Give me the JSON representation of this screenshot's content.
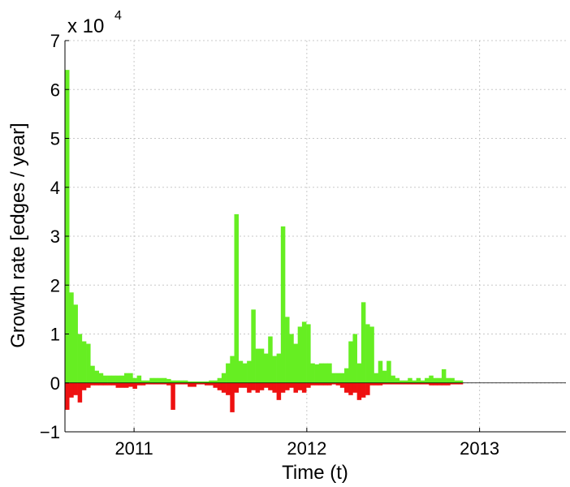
{
  "chart_data": {
    "type": "bar",
    "xlabel": "Time (t)",
    "ylabel": "Growth rate [edges / year]",
    "y_multiplier_label": "x 10",
    "y_multiplier_exponent": "4",
    "y_multiplier": 10000,
    "ylim": [
      -1,
      7
    ],
    "y_ticks": [
      -1,
      0,
      1,
      2,
      3,
      4,
      5,
      6,
      7
    ],
    "y_tick_labels": [
      "−1",
      "0",
      "1",
      "2",
      "3",
      "4",
      "5",
      "6",
      "7"
    ],
    "xlim": [
      2010.6,
      2013.5
    ],
    "x_ticks": [
      2011,
      2012,
      2013
    ],
    "x_tick_labels": [
      "2011",
      "2012",
      "2013"
    ],
    "grid": true,
    "bar_start": 2010.6,
    "bar_step": 0.0245,
    "series": [
      {
        "color": "#66ee22",
        "values": [
          6.4,
          1.85,
          1.6,
          1.0,
          0.85,
          0.8,
          0.35,
          0.25,
          0.2,
          0.15,
          0.15,
          0.15,
          0.15,
          0.15,
          0.2,
          0.2,
          0.1,
          0.15,
          0.05,
          0.05,
          0.1,
          0.1,
          0.1,
          0.1,
          0.08,
          0.05,
          0.05,
          0.05,
          0.05,
          0.03,
          0.03,
          0.03,
          0.03,
          0.03,
          0.05,
          0.05,
          0.1,
          0.2,
          0.4,
          0.55,
          3.45,
          0.45,
          0.4,
          0.45,
          1.5,
          0.7,
          0.7,
          0.6,
          0.95,
          0.55,
          0.6,
          3.2,
          1.35,
          1.0,
          0.8,
          1.15,
          1.25,
          1.2,
          0.4,
          0.38,
          0.4,
          0.4,
          0.4,
          0.2,
          0.2,
          0.2,
          0.3,
          0.85,
          1.0,
          0.4,
          1.65,
          1.2,
          1.15,
          0.2,
          0.45,
          0.25,
          0.45,
          0.15,
          0.1,
          0.05,
          0.05,
          0.1,
          0.05,
          0.1,
          0.05,
          0.1,
          0.15,
          0.1,
          0.1,
          0.28,
          0.1,
          0.1,
          0.05,
          0.05
        ]
      },
      {
        "color": "#ee1111",
        "values": [
          -0.55,
          -0.3,
          -0.25,
          -0.4,
          -0.15,
          -0.1,
          -0.05,
          -0.05,
          -0.05,
          -0.05,
          -0.05,
          -0.05,
          -0.1,
          -0.1,
          -0.1,
          -0.08,
          -0.12,
          -0.05,
          -0.05,
          -0.03,
          -0.03,
          -0.03,
          -0.03,
          -0.03,
          -0.05,
          -0.55,
          -0.03,
          -0.03,
          -0.03,
          -0.08,
          -0.08,
          -0.03,
          -0.03,
          -0.05,
          -0.05,
          -0.1,
          -0.15,
          -0.2,
          -0.25,
          -0.6,
          -0.2,
          -0.1,
          -0.1,
          -0.2,
          -0.15,
          -0.2,
          -0.15,
          -0.1,
          -0.15,
          -0.2,
          -0.35,
          -0.2,
          -0.15,
          -0.1,
          -0.2,
          -0.15,
          -0.2,
          -0.1,
          -0.05,
          -0.05,
          -0.05,
          -0.05,
          -0.05,
          -0.03,
          -0.05,
          -0.1,
          -0.2,
          -0.25,
          -0.2,
          -0.35,
          -0.3,
          -0.25,
          -0.05,
          -0.05,
          -0.05,
          -0.03,
          -0.03,
          -0.03,
          -0.03,
          -0.03,
          -0.03,
          -0.03,
          -0.03,
          -0.03,
          -0.03,
          -0.03,
          -0.05,
          -0.05,
          -0.05,
          -0.05,
          -0.05,
          -0.03,
          -0.03,
          -0.03
        ]
      }
    ]
  }
}
